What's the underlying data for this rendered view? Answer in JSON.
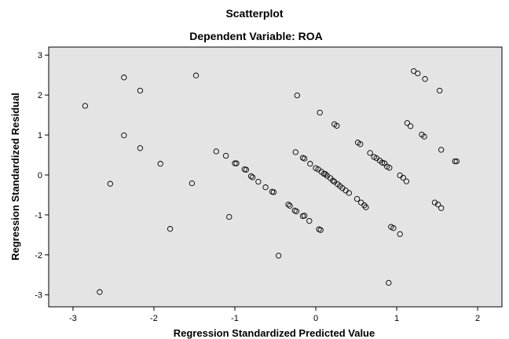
{
  "chart_data": {
    "type": "scatter",
    "title": "Scatterplot",
    "subtitle": "Dependent Variable: ROA",
    "xlabel": "Regression Standardized Predicted Value",
    "ylabel": "Regression Standardized Residual",
    "xlim": [
      -3.3,
      2.3
    ],
    "ylim": [
      -3.3,
      3.2
    ],
    "xticks": [
      -3,
      -2,
      -1,
      0,
      1,
      2
    ],
    "yticks": [
      -3,
      -2,
      -1,
      0,
      1,
      2,
      3
    ],
    "grid": false,
    "colors": {
      "plot_background": "#e4e4e4",
      "marker_stroke": "#000000"
    },
    "points": [
      [
        -2.85,
        1.73
      ],
      [
        -2.67,
        -2.93
      ],
      [
        -2.54,
        -0.22
      ],
      [
        -2.37,
        2.44
      ],
      [
        -2.37,
        0.99
      ],
      [
        -2.17,
        2.11
      ],
      [
        -2.17,
        0.67
      ],
      [
        -1.92,
        0.28
      ],
      [
        -1.8,
        -1.35
      ],
      [
        -1.53,
        -0.21
      ],
      [
        -1.48,
        2.49
      ],
      [
        -1.23,
        0.59
      ],
      [
        -1.11,
        0.48
      ],
      [
        -1.07,
        -1.05
      ],
      [
        -1.0,
        0.29
      ],
      [
        -0.98,
        0.29
      ],
      [
        -0.88,
        0.14
      ],
      [
        -0.86,
        0.13
      ],
      [
        -0.8,
        -0.03
      ],
      [
        -0.78,
        -0.06
      ],
      [
        -0.71,
        -0.17
      ],
      [
        -0.62,
        -0.31
      ],
      [
        -0.54,
        -0.42
      ],
      [
        -0.52,
        -0.43
      ],
      [
        -0.46,
        -2.02
      ],
      [
        -0.34,
        -0.74
      ],
      [
        -0.32,
        -0.77
      ],
      [
        -0.26,
        -0.89
      ],
      [
        -0.24,
        -0.91
      ],
      [
        -0.16,
        -1.03
      ],
      [
        -0.14,
        -1.02
      ],
      [
        -0.08,
        -1.15
      ],
      [
        -0.25,
        0.57
      ],
      [
        -0.23,
        1.99
      ],
      [
        -0.16,
        0.43
      ],
      [
        -0.14,
        0.41
      ],
      [
        -0.07,
        0.28
      ],
      [
        0.0,
        0.17
      ],
      [
        0.03,
        0.14
      ],
      [
        0.05,
        1.56
      ],
      [
        0.07,
        0.08
      ],
      [
        0.1,
        0.03
      ],
      [
        0.12,
        0.02
      ],
      [
        0.14,
        -0.02
      ],
      [
        0.18,
        -0.08
      ],
      [
        0.21,
        -0.14
      ],
      [
        0.23,
        -0.17
      ],
      [
        0.27,
        -0.23
      ],
      [
        0.3,
        -0.28
      ],
      [
        0.33,
        -0.33
      ],
      [
        0.37,
        -0.39
      ],
      [
        0.41,
        -0.45
      ],
      [
        0.04,
        -1.36
      ],
      [
        0.06,
        -1.38
      ],
      [
        0.23,
        1.27
      ],
      [
        0.26,
        1.23
      ],
      [
        0.51,
        -0.6
      ],
      [
        0.56,
        -0.69
      ],
      [
        0.6,
        -0.76
      ],
      [
        0.62,
        -0.81
      ],
      [
        0.52,
        0.81
      ],
      [
        0.55,
        0.77
      ],
      [
        0.67,
        0.55
      ],
      [
        0.72,
        0.45
      ],
      [
        0.75,
        0.42
      ],
      [
        0.79,
        0.36
      ],
      [
        0.82,
        0.31
      ],
      [
        0.85,
        0.29
      ],
      [
        0.88,
        0.21
      ],
      [
        0.91,
        0.18
      ],
      [
        0.9,
        -2.7
      ],
      [
        0.93,
        -1.3
      ],
      [
        0.96,
        -1.33
      ],
      [
        1.04,
        -1.48
      ],
      [
        1.04,
        -0.01
      ],
      [
        1.08,
        -0.07
      ],
      [
        1.12,
        -0.16
      ],
      [
        1.13,
        1.3
      ],
      [
        1.17,
        1.22
      ],
      [
        1.21,
        2.6
      ],
      [
        1.26,
        2.54
      ],
      [
        1.31,
        1.01
      ],
      [
        1.34,
        0.96
      ],
      [
        1.35,
        2.4
      ],
      [
        1.47,
        -0.69
      ],
      [
        1.51,
        -0.74
      ],
      [
        1.53,
        2.11
      ],
      [
        1.55,
        0.63
      ],
      [
        1.55,
        -0.83
      ],
      [
        1.72,
        0.34
      ],
      [
        1.74,
        0.34
      ]
    ]
  }
}
